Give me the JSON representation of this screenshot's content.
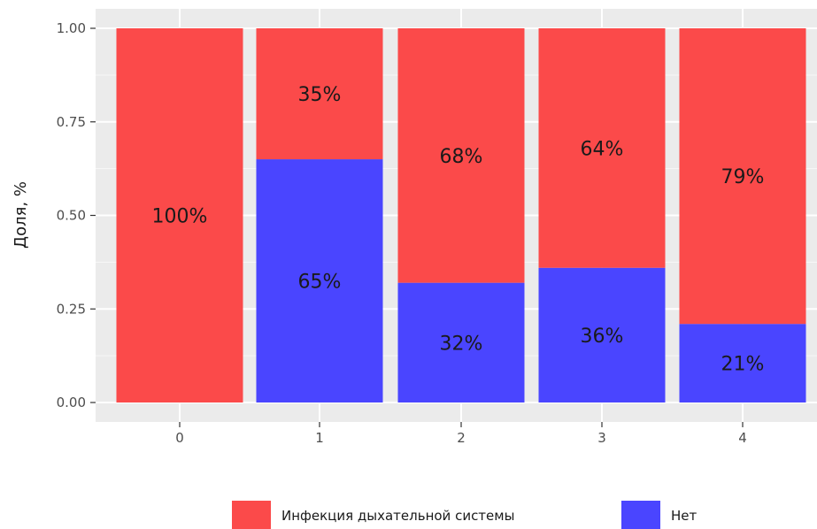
{
  "chart_data": {
    "type": "bar",
    "stacked": true,
    "normalized": true,
    "categories": [
      "0",
      "1",
      "2",
      "3",
      "4"
    ],
    "series": [
      {
        "name": "Нет",
        "color": "#4a45ff",
        "values": [
          0.0,
          0.65,
          0.32,
          0.36,
          0.21
        ],
        "labels": [
          "",
          "65%",
          "32%",
          "36%",
          "21%"
        ]
      },
      {
        "name": "Инфекция дыхательной системы",
        "color": "#fb4a4a",
        "values": [
          1.0,
          0.35,
          0.68,
          0.64,
          0.79
        ],
        "labels": [
          "100%",
          "35%",
          "68%",
          "64%",
          "79%"
        ]
      }
    ],
    "title": "",
    "xlabel": "",
    "ylabel": "Доля, %",
    "ylim": [
      0,
      1
    ],
    "yticks": [
      "0.00",
      "0.25",
      "0.50",
      "0.75",
      "1.00"
    ],
    "ytick_values": [
      0,
      0.25,
      0.5,
      0.75,
      1.0
    ],
    "grid": true,
    "panel_background": "#ebebeb",
    "legend_position": "bottom",
    "legend_order": [
      "Инфекция дыхательной системы",
      "Нет"
    ]
  }
}
